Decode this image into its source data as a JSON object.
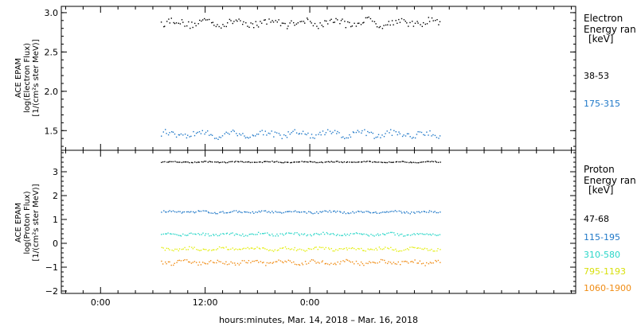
{
  "chart_data": [
    {
      "type": "scatter",
      "ylabel_lines": [
        "ACE EPAM",
        "log(Electron Flux)",
        "[1/(cm²s ster MeV)]"
      ],
      "ylim": [
        1.25,
        3.08
      ],
      "yticks": [
        1.5,
        2.0,
        2.5,
        3.0
      ],
      "ytick_labels": [
        "1.5",
        "2.0",
        "2.5",
        "3.0"
      ],
      "legend_title_lines": [
        "Electron",
        "Energy ran",
        "[keV]"
      ],
      "x_range_hours": [
        -4.5,
        54.5
      ],
      "series": [
        {
          "name": "38-53",
          "color": "#000000",
          "start": 6.9,
          "end": 39.0,
          "level": 2.88,
          "spread": 0.09
        },
        {
          "name": "175-315",
          "color": "#1f78c8",
          "start": 6.9,
          "end": 39.0,
          "level": 1.46,
          "spread": 0.08
        }
      ]
    },
    {
      "type": "scatter",
      "ylabel_lines": [
        "ACE EPAM",
        "log(Proton Flux)",
        "[1/(cm²s ster MeV)]"
      ],
      "ylim": [
        -2.1,
        3.9
      ],
      "yticks": [
        -2,
        -1,
        0,
        1,
        2,
        3
      ],
      "ytick_labels": [
        "−2",
        "−1",
        "0",
        "1",
        "2",
        "3"
      ],
      "legend_title_lines": [
        "Proton",
        "Energy ran",
        "[keV]"
      ],
      "x_range_hours": [
        -4.5,
        54.5
      ],
      "series": [
        {
          "name": "47-68",
          "color": "#000000",
          "start": 6.9,
          "end": 39.0,
          "level": 3.43,
          "spread": 0.04
        },
        {
          "name": "115-195",
          "color": "#1f78c8",
          "start": 6.9,
          "end": 39.0,
          "level": 1.33,
          "spread": 0.08
        },
        {
          "name": "310-580",
          "color": "#2ad6c8",
          "start": 6.9,
          "end": 39.0,
          "level": 0.4,
          "spread": 0.1
        },
        {
          "name": "795-1193",
          "color": "#e4ee10",
          "start": 6.9,
          "end": 39.0,
          "level": -0.22,
          "spread": 0.12
        },
        {
          "name": "1060-1900",
          "color": "#f08c14",
          "start": 6.9,
          "end": 39.0,
          "level": -0.78,
          "spread": 0.16
        }
      ]
    }
  ],
  "x_axis": {
    "label": "hours:minutes, Mar. 14, 2018 – Mar. 16, 2018",
    "major_ticks": [
      0,
      12,
      24
    ],
    "major_labels": [
      "0:00",
      "12:00",
      "0:00"
    ],
    "minor_step": 2
  }
}
